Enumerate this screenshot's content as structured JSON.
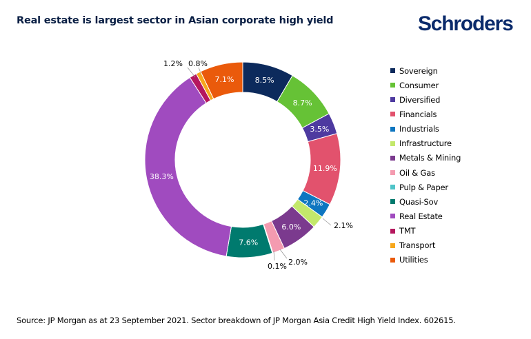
{
  "title": "Real estate is largest sector in Asian corporate high yield",
  "brand": "Schroders",
  "source": "Source: JP Morgan as at 23 September 2021. Sector breakdown of JP Morgan Asia Credit High Yield Index. 602615.",
  "chart_data": {
    "type": "pie",
    "variant": "donut",
    "legend_position": "right",
    "slices": [
      {
        "name": "Sovereign",
        "value": 8.5,
        "label": "8.5%",
        "color": "#0c2a5c",
        "label_color": "#ffffff"
      },
      {
        "name": "Consumer",
        "value": 8.7,
        "label": "8.7%",
        "color": "#66c236",
        "label_color": "#ffffff"
      },
      {
        "name": "Diversified",
        "value": 3.5,
        "label": "3.5%",
        "color": "#4e3aa0",
        "label_color": "#ffffff"
      },
      {
        "name": "Financials",
        "value": 11.9,
        "label": "11.9%",
        "color": "#e2526d",
        "label_color": "#ffffff"
      },
      {
        "name": "Industrials",
        "value": 2.4,
        "label": "2.4%",
        "color": "#0e76c0",
        "label_color": "#ffffff"
      },
      {
        "name": "Infrastructure",
        "value": 2.1,
        "label": "2.1%",
        "color": "#c3e86b",
        "label_color": "#000000"
      },
      {
        "name": "Metals & Mining",
        "value": 6.0,
        "label": "6.0%",
        "color": "#7b3a8e",
        "label_color": "#ffffff"
      },
      {
        "name": "Oil & Gas",
        "value": 2.0,
        "label": "2.0%",
        "color": "#f49bb0",
        "label_color": "#000000"
      },
      {
        "name": "Pulp & Paper",
        "value": 0.1,
        "label": "0.1%",
        "color": "#4fc4c8",
        "label_color": "#000000"
      },
      {
        "name": "Quasi-Sov",
        "value": 7.6,
        "label": "7.6%",
        "color": "#007a6e",
        "label_color": "#ffffff"
      },
      {
        "name": "Real Estate",
        "value": 38.3,
        "label": "38.3%",
        "color": "#a04bbf",
        "label_color": "#ffffff"
      },
      {
        "name": "TMT",
        "value": 1.2,
        "label": "1.2%",
        "color": "#b5175e",
        "label_color": "#000000"
      },
      {
        "name": "Transport",
        "value": 0.8,
        "label": "0.8%",
        "color": "#f7a71c",
        "label_color": "#000000"
      },
      {
        "name": "Utilities",
        "value": 7.1,
        "label": "7.1%",
        "color": "#ea5a0b",
        "label_color": "#ffffff"
      }
    ]
  }
}
